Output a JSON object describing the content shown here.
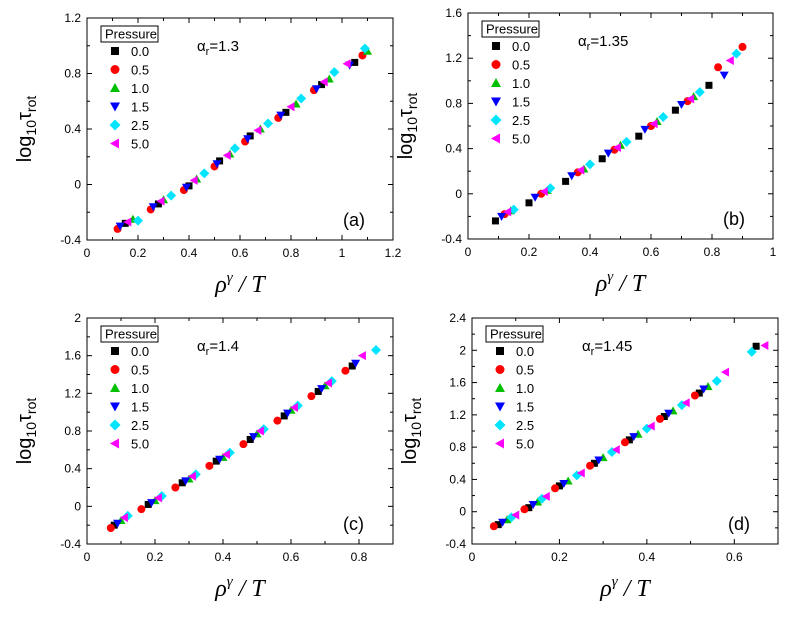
{
  "figure": {
    "panels": [
      {
        "id": "a",
        "panel_label": "(a)",
        "alpha_text": "α",
        "alpha_sub": "r",
        "alpha_value": "=1.3",
        "ylabel_main": "log",
        "ylabel_sub1": "10",
        "ylabel_sym": "τ",
        "ylabel_sub2": "rot",
        "xlabel_main": "ρ",
        "xlabel_sup": "γ",
        "xlabel_tail": " / T",
        "legend_title": "Pressure"
      },
      {
        "id": "b",
        "panel_label": "(b)",
        "alpha_text": "α",
        "alpha_sub": "r",
        "alpha_value": "=1.35",
        "ylabel_main": "log",
        "ylabel_sub1": "10",
        "ylabel_sym": "τ",
        "ylabel_sub2": "rot",
        "xlabel_main": "ρ",
        "xlabel_sup": "γ",
        "xlabel_tail": " / T",
        "legend_title": "Pressure"
      },
      {
        "id": "c",
        "panel_label": "(c)",
        "alpha_text": "α",
        "alpha_sub": "r",
        "alpha_value": "=1.4",
        "ylabel_main": "log",
        "ylabel_sub1": "10",
        "ylabel_sym": "τ",
        "ylabel_sub2": "rot",
        "xlabel_main": "ρ",
        "xlabel_sup": "γ",
        "xlabel_tail": " / T",
        "legend_title": "Pressure"
      },
      {
        "id": "d",
        "panel_label": "(d)",
        "alpha_text": "α",
        "alpha_sub": "r",
        "alpha_value": "=1.45",
        "ylabel_main": "log",
        "ylabel_sub1": "10",
        "ylabel_sym": "τ",
        "ylabel_sub2": "rot",
        "xlabel_main": "ρ",
        "xlabel_sup": "γ",
        "xlabel_tail": " / T",
        "legend_title": "Pressure"
      }
    ]
  },
  "chart_data": [
    {
      "type": "scatter",
      "panel": "(a)",
      "annotation": "αr=1.3",
      "xlim": [
        0,
        1.2
      ],
      "ylim": [
        -0.4,
        1.2
      ],
      "xticks": [
        "0",
        "0.2",
        "0.4",
        "0.6",
        "0.8",
        "1",
        "1.2"
      ],
      "yticks": [
        "-0.4",
        "0",
        "0.4",
        "0.8",
        "1.2"
      ],
      "legend_title": "Pressure",
      "legend_position": "top-left",
      "series": [
        {
          "name": "0.0",
          "marker": "square",
          "color": "#000000",
          "x": [
            0.15,
            0.28,
            0.4,
            0.52,
            0.64,
            0.78,
            0.92,
            1.05
          ],
          "y": [
            -0.28,
            -0.14,
            -0.01,
            0.17,
            0.35,
            0.52,
            0.72,
            0.88
          ]
        },
        {
          "name": "0.5",
          "marker": "circle",
          "color": "#ff0000",
          "x": [
            0.12,
            0.25,
            0.38,
            0.5,
            0.62,
            0.75,
            0.89,
            1.08
          ],
          "y": [
            -0.32,
            -0.18,
            -0.04,
            0.13,
            0.31,
            0.48,
            0.68,
            0.93
          ]
        },
        {
          "name": "1.0",
          "marker": "triangle-up",
          "color": "#00c000",
          "x": [
            0.18,
            0.3,
            0.43,
            0.56,
            0.68,
            0.82,
            0.95,
            1.1
          ],
          "y": [
            -0.25,
            -0.11,
            0.04,
            0.22,
            0.4,
            0.58,
            0.76,
            0.96
          ]
        },
        {
          "name": "1.5",
          "marker": "triangle-down",
          "color": "#0000ff",
          "x": [
            0.13,
            0.26,
            0.39,
            0.51,
            0.63,
            0.76,
            0.9,
            1.03
          ],
          "y": [
            -0.3,
            -0.16,
            -0.02,
            0.15,
            0.33,
            0.5,
            0.69,
            0.86
          ]
        },
        {
          "name": "2.5",
          "marker": "diamond",
          "color": "#00e5ff",
          "x": [
            0.2,
            0.33,
            0.46,
            0.58,
            0.71,
            0.84,
            0.97,
            1.09
          ],
          "y": [
            -0.26,
            -0.08,
            0.08,
            0.26,
            0.44,
            0.62,
            0.81,
            0.98
          ]
        },
        {
          "name": "5.0",
          "marker": "triangle-left",
          "color": "#ff00ff",
          "x": [
            0.16,
            0.29,
            0.42,
            0.55,
            0.67,
            0.8,
            0.93,
            1.02
          ],
          "y": [
            -0.27,
            -0.12,
            0.03,
            0.21,
            0.39,
            0.56,
            0.74,
            0.87
          ]
        }
      ]
    },
    {
      "type": "scatter",
      "panel": "(b)",
      "annotation": "αr=1.35",
      "xlim": [
        0,
        1
      ],
      "ylim": [
        -0.4,
        1.6
      ],
      "xticks": [
        "0",
        "0.2",
        "0.4",
        "0.6",
        "0.8",
        "1"
      ],
      "yticks": [
        "-0.4",
        "0",
        "0.4",
        "0.8",
        "1.2",
        "1.6"
      ],
      "legend_title": "Pressure",
      "legend_position": "top-left",
      "series": [
        {
          "name": "0.0",
          "marker": "square",
          "color": "#000000",
          "x": [
            0.09,
            0.2,
            0.32,
            0.44,
            0.56,
            0.68,
            0.79
          ],
          "y": [
            -0.24,
            -0.08,
            0.11,
            0.31,
            0.51,
            0.74,
            0.96
          ]
        },
        {
          "name": "0.5",
          "marker": "circle",
          "color": "#ff0000",
          "x": [
            0.12,
            0.24,
            0.36,
            0.48,
            0.6,
            0.72,
            0.82,
            0.9
          ],
          "y": [
            -0.18,
            0.0,
            0.19,
            0.39,
            0.6,
            0.82,
            1.12,
            1.3
          ]
        },
        {
          "name": "1.0",
          "marker": "triangle-up",
          "color": "#00c000",
          "x": [
            0.14,
            0.26,
            0.38,
            0.5,
            0.62,
            0.74
          ],
          "y": [
            -0.15,
            0.03,
            0.22,
            0.43,
            0.64,
            0.86
          ]
        },
        {
          "name": "1.5",
          "marker": "triangle-down",
          "color": "#0000ff",
          "x": [
            0.11,
            0.22,
            0.34,
            0.46,
            0.58,
            0.7,
            0.84
          ],
          "y": [
            -0.2,
            -0.03,
            0.16,
            0.36,
            0.57,
            0.79,
            1.05
          ]
        },
        {
          "name": "2.5",
          "marker": "diamond",
          "color": "#00e5ff",
          "x": [
            0.15,
            0.27,
            0.4,
            0.52,
            0.64,
            0.76,
            0.88
          ],
          "y": [
            -0.14,
            0.05,
            0.26,
            0.46,
            0.68,
            0.9,
            1.24
          ]
        },
        {
          "name": "5.0",
          "marker": "triangle-left",
          "color": "#ff00ff",
          "x": [
            0.13,
            0.25,
            0.37,
            0.49,
            0.61,
            0.73,
            0.86
          ],
          "y": [
            -0.16,
            0.02,
            0.21,
            0.41,
            0.62,
            0.84,
            1.18
          ]
        }
      ]
    },
    {
      "type": "scatter",
      "panel": "(c)",
      "annotation": "αr=1.4",
      "xlim": [
        0,
        0.9
      ],
      "ylim": [
        -0.4,
        2
      ],
      "xticks": [
        "0",
        "0.2",
        "0.4",
        "0.6",
        "0.8"
      ],
      "yticks": [
        "-0.4",
        "0",
        "0.4",
        "0.8",
        "1.2",
        "1.6",
        "2"
      ],
      "legend_title": "Pressure",
      "legend_position": "top-left",
      "series": [
        {
          "name": "0.0",
          "marker": "square",
          "color": "#000000",
          "x": [
            0.08,
            0.18,
            0.28,
            0.38,
            0.48,
            0.58,
            0.68,
            0.78
          ],
          "y": [
            -0.2,
            0.02,
            0.25,
            0.48,
            0.71,
            0.96,
            1.22,
            1.49
          ]
        },
        {
          "name": "0.5",
          "marker": "circle",
          "color": "#ff0000",
          "x": [
            0.07,
            0.16,
            0.26,
            0.36,
            0.46,
            0.56,
            0.66,
            0.76
          ],
          "y": [
            -0.23,
            -0.03,
            0.2,
            0.43,
            0.66,
            0.91,
            1.17,
            1.44
          ]
        },
        {
          "name": "1.0",
          "marker": "triangle-up",
          "color": "#00c000",
          "x": [
            0.1,
            0.2,
            0.3,
            0.4,
            0.5,
            0.6,
            0.7
          ],
          "y": [
            -0.15,
            0.06,
            0.29,
            0.52,
            0.77,
            1.02,
            1.28
          ]
        },
        {
          "name": "1.5",
          "marker": "triangle-down",
          "color": "#0000ff",
          "x": [
            0.09,
            0.19,
            0.29,
            0.39,
            0.49,
            0.59,
            0.69,
            0.79
          ],
          "y": [
            -0.18,
            0.04,
            0.27,
            0.5,
            0.74,
            0.99,
            1.25,
            1.52
          ]
        },
        {
          "name": "2.5",
          "marker": "diamond",
          "color": "#00e5ff",
          "x": [
            0.12,
            0.22,
            0.32,
            0.42,
            0.52,
            0.62,
            0.72,
            0.85
          ],
          "y": [
            -0.1,
            0.11,
            0.34,
            0.57,
            0.82,
            1.07,
            1.33,
            1.66
          ]
        },
        {
          "name": "5.0",
          "marker": "triangle-left",
          "color": "#ff00ff",
          "x": [
            0.11,
            0.21,
            0.31,
            0.41,
            0.51,
            0.61,
            0.71,
            0.81
          ],
          "y": [
            -0.12,
            0.09,
            0.32,
            0.55,
            0.8,
            1.05,
            1.31,
            1.6
          ]
        }
      ]
    },
    {
      "type": "scatter",
      "panel": "(d)",
      "annotation": "αr=1.45",
      "xlim": [
        0,
        0.7
      ],
      "ylim": [
        -0.4,
        2.4
      ],
      "xticks": [
        "0",
        "0.2",
        "0.4",
        "0.6"
      ],
      "yticks": [
        "-0.4",
        "0",
        "0.4",
        "0.8",
        "1.2",
        "1.6",
        "2",
        "2.4"
      ],
      "legend_title": "Pressure",
      "legend_position": "top-left",
      "series": [
        {
          "name": "0.0",
          "marker": "square",
          "color": "#000000",
          "x": [
            0.06,
            0.13,
            0.2,
            0.28,
            0.36,
            0.44,
            0.52,
            0.65
          ],
          "y": [
            -0.16,
            0.05,
            0.32,
            0.6,
            0.89,
            1.18,
            1.47,
            2.05
          ]
        },
        {
          "name": "0.5",
          "marker": "circle",
          "color": "#ff0000",
          "x": [
            0.05,
            0.12,
            0.19,
            0.27,
            0.35,
            0.43,
            0.51
          ],
          "y": [
            -0.18,
            0.03,
            0.29,
            0.57,
            0.86,
            1.15,
            1.44
          ]
        },
        {
          "name": "1.0",
          "marker": "triangle-up",
          "color": "#00c000",
          "x": [
            0.08,
            0.15,
            0.22,
            0.3,
            0.38,
            0.46,
            0.54
          ],
          "y": [
            -0.1,
            0.12,
            0.38,
            0.67,
            0.96,
            1.25,
            1.55
          ]
        },
        {
          "name": "1.5",
          "marker": "triangle-down",
          "color": "#0000ff",
          "x": [
            0.07,
            0.14,
            0.21,
            0.29,
            0.37,
            0.45,
            0.53
          ],
          "y": [
            -0.13,
            0.09,
            0.35,
            0.64,
            0.93,
            1.22,
            1.52
          ]
        },
        {
          "name": "2.5",
          "marker": "diamond",
          "color": "#00e5ff",
          "x": [
            0.09,
            0.16,
            0.24,
            0.32,
            0.4,
            0.48,
            0.56,
            0.64
          ],
          "y": [
            -0.07,
            0.16,
            0.45,
            0.74,
            1.03,
            1.32,
            1.62,
            1.98
          ]
        },
        {
          "name": "5.0",
          "marker": "triangle-left",
          "color": "#ff00ff",
          "x": [
            0.1,
            0.17,
            0.25,
            0.33,
            0.41,
            0.49,
            0.58,
            0.67
          ],
          "y": [
            -0.04,
            0.19,
            0.48,
            0.77,
            1.06,
            1.35,
            1.73,
            2.06
          ]
        }
      ]
    }
  ]
}
